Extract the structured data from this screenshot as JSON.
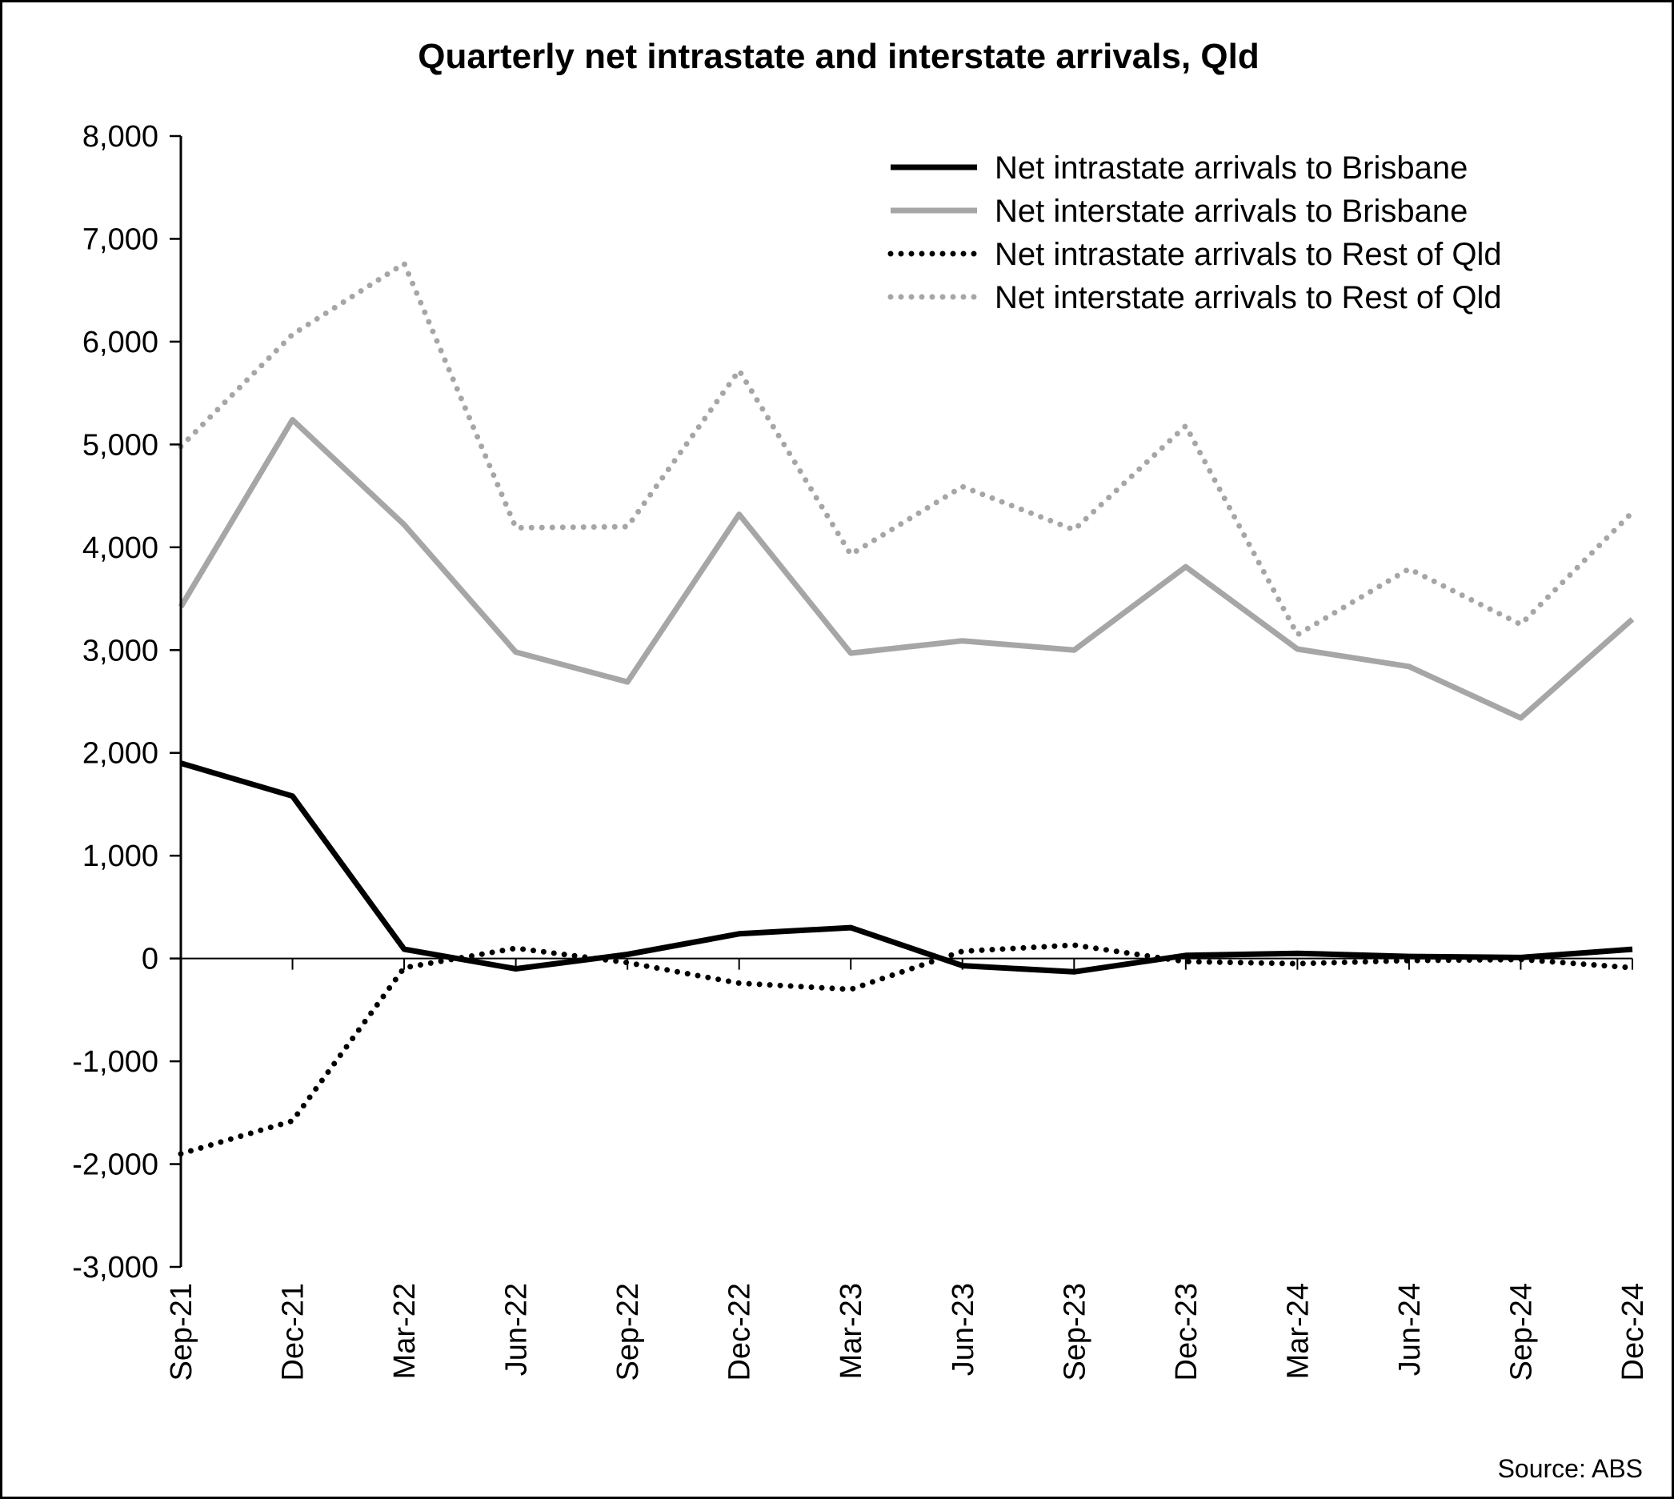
{
  "chart_data": {
    "type": "line",
    "title": "Quarterly net intrastate and interstate arrivals, Qld",
    "xlabel": "",
    "ylabel": "",
    "source": "Source: ABS",
    "categories": [
      "Sep-21",
      "Dec-21",
      "Mar-22",
      "Jun-22",
      "Sep-22",
      "Dec-22",
      "Mar-23",
      "Jun-23",
      "Sep-23",
      "Dec-23",
      "Mar-24",
      "Jun-24",
      "Sep-24",
      "Dec-24"
    ],
    "ylim": [
      -3000,
      8000
    ],
    "yticks": [
      -3000,
      -2000,
      -1000,
      0,
      1000,
      2000,
      3000,
      4000,
      5000,
      6000,
      7000,
      8000
    ],
    "ytick_labels": [
      "-3,000",
      "-2,000",
      "-1,000",
      "0",
      "1,000",
      "2,000",
      "3,000",
      "4,000",
      "5,000",
      "6,000",
      "7,000",
      "8,000"
    ],
    "grid": false,
    "legend_position": "top-right",
    "series": [
      {
        "name": "Net intrastate arrivals to Brisbane",
        "color": "#000000",
        "style": "solid",
        "values": [
          1900,
          1580,
          90,
          -100,
          40,
          240,
          300,
          -70,
          -130,
          30,
          50,
          20,
          10,
          90
        ]
      },
      {
        "name": "Net interstate arrivals to Brisbane",
        "color": "#a6a6a6",
        "style": "solid",
        "values": [
          3420,
          5240,
          4220,
          2980,
          2690,
          4320,
          2970,
          3090,
          3000,
          3810,
          3010,
          2840,
          2340,
          3300
        ]
      },
      {
        "name": "Net intrastate arrivals to Rest of Qld",
        "color": "#000000",
        "style": "dotted",
        "values": [
          -1900,
          -1580,
          -90,
          100,
          -40,
          -240,
          -300,
          70,
          130,
          -30,
          -50,
          -20,
          -10,
          -90
        ]
      },
      {
        "name": "Net interstate arrivals to Rest of Qld",
        "color": "#a6a6a6",
        "style": "dotted",
        "values": [
          4980,
          6070,
          6760,
          4190,
          4200,
          5720,
          3930,
          4590,
          4170,
          5180,
          3150,
          3790,
          3250,
          4340
        ]
      }
    ]
  }
}
